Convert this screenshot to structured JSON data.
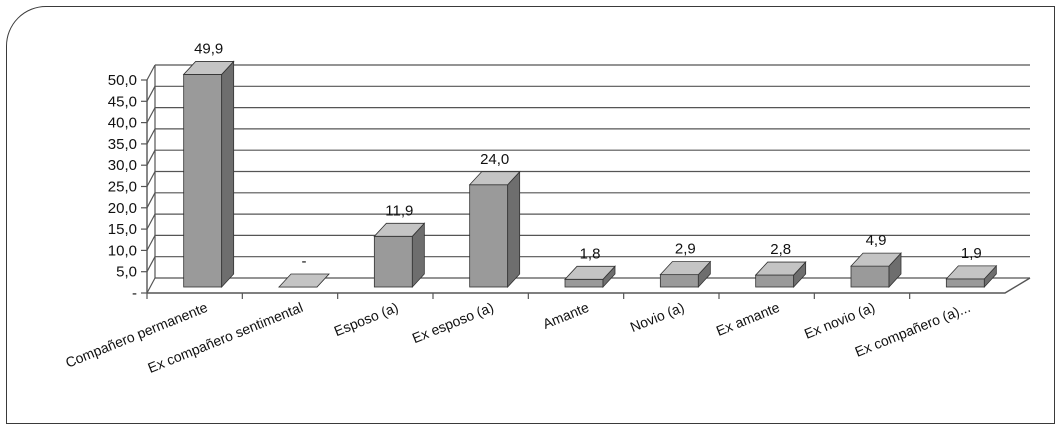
{
  "chart_data": {
    "type": "bar",
    "style": "3d-column",
    "categories": [
      "Compañero permanente",
      "Ex compañero sentimental",
      "Esposo (a)",
      "Ex esposo (a)",
      "Amante",
      "Novio (a)",
      "Ex amante",
      "Ex novio (a)",
      "Ex compañero (a)..."
    ],
    "values": [
      49.9,
      0,
      11.9,
      24.0,
      1.8,
      2.9,
      2.8,
      4.9,
      1.9
    ],
    "data_labels": [
      "49,9",
      "-",
      "11,9",
      "24,0",
      "1,8",
      "2,9",
      "2,8",
      "4,9",
      "1,9"
    ],
    "y_ticks": [
      "-",
      "5,0",
      "10,0",
      "15,0",
      "20,0",
      "25,0",
      "30,0",
      "35,0",
      "40,0",
      "45,0",
      "50,0"
    ],
    "ylim": [
      0,
      50
    ],
    "grid": true,
    "legend": "none",
    "title": "",
    "xlabel": "",
    "ylabel": "",
    "colors": {
      "bar_front": "#9a9a9a",
      "bar_side": "#6e6e6e",
      "bar_top": "#c4c4c4",
      "grid": "#555555"
    }
  }
}
